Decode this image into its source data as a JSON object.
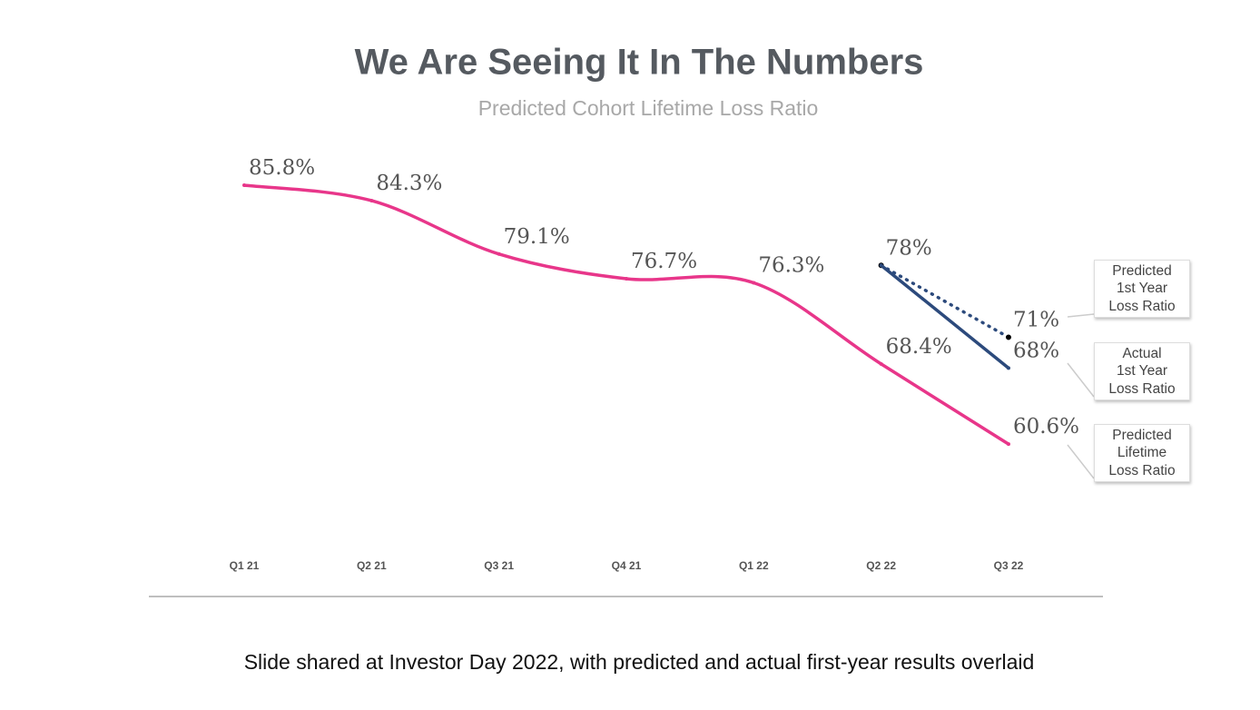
{
  "chart_data": {
    "type": "line",
    "title": "We Are Seeing It In The Numbers",
    "subtitle": "Predicted Cohort Lifetime Loss Ratio",
    "categories": [
      "Q1 21",
      "Q2 21",
      "Q3 21",
      "Q4 21",
      "Q1 22",
      "Q2 22",
      "Q3 22"
    ],
    "ylim": [
      50,
      90
    ],
    "legend": "right",
    "series": [
      {
        "name": "Predicted\n1st Year\nLoss Ratio",
        "color": "#2c4a7c",
        "style": "dotted",
        "values": [
          null,
          null,
          null,
          null,
          null,
          78,
          71
        ],
        "value_labels": [
          null,
          null,
          null,
          null,
          null,
          "78%",
          "71%"
        ]
      },
      {
        "name": "Actual\n1st Year\nLoss Ratio",
        "color": "#2c4a7c",
        "style": "solid",
        "values": [
          null,
          null,
          null,
          null,
          null,
          78,
          68
        ],
        "value_labels": [
          null,
          null,
          null,
          null,
          null,
          null,
          "68%"
        ]
      },
      {
        "name": "Predicted\nLifetime\nLoss Ratio",
        "color": "#e8368a",
        "style": "smooth",
        "values": [
          85.8,
          84.3,
          79.1,
          76.7,
          76.3,
          68.4,
          60.6
        ],
        "value_labels": [
          "85.8%",
          "84.3%",
          "79.1%",
          "76.7%",
          "76.3%",
          "68.4%",
          "60.6%"
        ]
      }
    ],
    "caption": "Slide shared at Investor Day 2022, with predicted and actual first-year results overlaid"
  }
}
